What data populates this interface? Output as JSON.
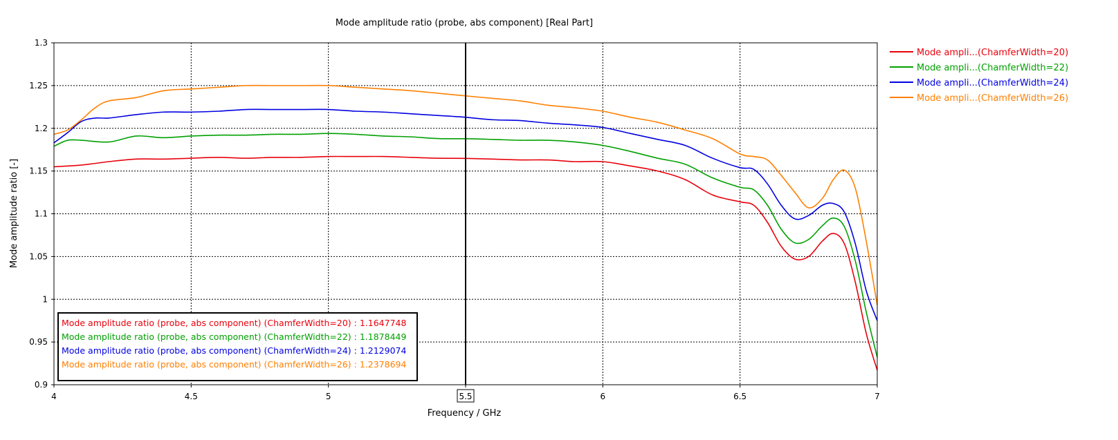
{
  "chart_data": {
    "type": "line",
    "title": "Mode amplitude ratio (probe, abs component) [Real Part]",
    "xlabel": "Frequency / GHz",
    "ylabel": "Mode amplitude ratio [-]",
    "xlim": [
      4,
      7
    ],
    "ylim": [
      0.9,
      1.3
    ],
    "xticks": [
      4,
      4.5,
      5,
      5.5,
      6,
      6.5,
      7
    ],
    "xtick_labels": [
      "4",
      "4.5",
      "5",
      "5.5",
      "6",
      "6.5",
      "7"
    ],
    "yticks": [
      0.9,
      0.95,
      1.0,
      1.05,
      1.1,
      1.15,
      1.2,
      1.25,
      1.3
    ],
    "ytick_labels": [
      "0.9",
      "0.95",
      "1",
      "1.05",
      "1.1",
      "1.15",
      "1.2",
      "1.25",
      "1.3"
    ],
    "grid": true,
    "legend_position": "right",
    "marker": {
      "x": 5.5,
      "label": "5.5"
    },
    "series": [
      {
        "name": "Mode ampli...(ChamferWidth=20)",
        "color": "#e8000b",
        "marker_label": "Mode amplitude ratio (probe, abs component) (ChamferWidth=20) : 1.1647748",
        "x": [
          4.0,
          4.1,
          4.2,
          4.3,
          4.4,
          4.5,
          4.6,
          4.7,
          4.8,
          4.9,
          5.0,
          5.1,
          5.2,
          5.3,
          5.4,
          5.5,
          5.6,
          5.7,
          5.8,
          5.9,
          6.0,
          6.1,
          6.2,
          6.3,
          6.4,
          6.5,
          6.55,
          6.6,
          6.65,
          6.7,
          6.75,
          6.8,
          6.84,
          6.88,
          6.92,
          6.96,
          7.0
        ],
        "y": [
          1.155,
          1.157,
          1.161,
          1.164,
          1.164,
          1.165,
          1.166,
          1.165,
          1.166,
          1.166,
          1.167,
          1.167,
          1.167,
          1.166,
          1.165,
          1.1648,
          1.164,
          1.163,
          1.163,
          1.161,
          1.161,
          1.156,
          1.15,
          1.14,
          1.122,
          1.114,
          1.11,
          1.09,
          1.062,
          1.047,
          1.05,
          1.068,
          1.077,
          1.065,
          1.02,
          0.96,
          0.917
        ]
      },
      {
        "name": "Mode ampli...(ChamferWidth=22)",
        "color": "#00a000",
        "marker_label": "Mode amplitude ratio (probe, abs component) (ChamferWidth=22) : 1.1878449",
        "x": [
          4.0,
          4.05,
          4.1,
          4.2,
          4.3,
          4.4,
          4.5,
          4.6,
          4.7,
          4.8,
          4.9,
          5.0,
          5.1,
          5.2,
          5.3,
          5.4,
          5.5,
          5.6,
          5.7,
          5.8,
          5.9,
          6.0,
          6.1,
          6.2,
          6.3,
          6.4,
          6.5,
          6.55,
          6.6,
          6.65,
          6.7,
          6.75,
          6.8,
          6.84,
          6.88,
          6.92,
          6.96,
          7.0
        ],
        "y": [
          1.179,
          1.186,
          1.186,
          1.184,
          1.191,
          1.189,
          1.191,
          1.192,
          1.192,
          1.193,
          1.193,
          1.194,
          1.193,
          1.191,
          1.19,
          1.188,
          1.1878,
          1.187,
          1.186,
          1.186,
          1.184,
          1.18,
          1.173,
          1.165,
          1.158,
          1.142,
          1.131,
          1.128,
          1.11,
          1.082,
          1.066,
          1.07,
          1.086,
          1.095,
          1.085,
          1.045,
          0.985,
          0.932
        ]
      },
      {
        "name": "Mode ampli...(ChamferWidth=24)",
        "color": "#0000e0",
        "marker_label": "Mode amplitude ratio (probe, abs component) (ChamferWidth=24) : 1.2129074",
        "x": [
          4.0,
          4.05,
          4.1,
          4.15,
          4.2,
          4.3,
          4.4,
          4.5,
          4.6,
          4.7,
          4.8,
          4.9,
          5.0,
          5.1,
          5.2,
          5.3,
          5.4,
          5.5,
          5.6,
          5.7,
          5.8,
          5.9,
          6.0,
          6.1,
          6.2,
          6.3,
          6.4,
          6.5,
          6.55,
          6.6,
          6.65,
          6.7,
          6.75,
          6.8,
          6.84,
          6.88,
          6.92,
          6.96,
          7.0
        ],
        "y": [
          1.183,
          1.195,
          1.208,
          1.212,
          1.212,
          1.216,
          1.219,
          1.219,
          1.22,
          1.222,
          1.222,
          1.222,
          1.222,
          1.22,
          1.219,
          1.217,
          1.215,
          1.2129,
          1.21,
          1.209,
          1.206,
          1.204,
          1.201,
          1.194,
          1.187,
          1.18,
          1.165,
          1.154,
          1.152,
          1.135,
          1.11,
          1.094,
          1.098,
          1.11,
          1.112,
          1.102,
          1.065,
          1.01,
          0.975
        ]
      },
      {
        "name": "Mode ampli...(ChamferWidth=26)",
        "color": "#ff7f00",
        "marker_label": "Mode amplitude ratio (probe, abs component) (ChamferWidth=26) : 1.2378694",
        "x": [
          4.0,
          4.05,
          4.1,
          4.15,
          4.2,
          4.3,
          4.4,
          4.5,
          4.6,
          4.7,
          4.8,
          4.9,
          5.0,
          5.1,
          5.2,
          5.3,
          5.4,
          5.5,
          5.6,
          5.7,
          5.8,
          5.9,
          6.0,
          6.1,
          6.2,
          6.3,
          6.4,
          6.5,
          6.55,
          6.6,
          6.65,
          6.7,
          6.75,
          6.8,
          6.84,
          6.88,
          6.92,
          6.96,
          7.0
        ],
        "y": [
          1.193,
          1.198,
          1.21,
          1.224,
          1.232,
          1.236,
          1.244,
          1.246,
          1.248,
          1.25,
          1.25,
          1.25,
          1.25,
          1.248,
          1.246,
          1.244,
          1.241,
          1.2379,
          1.235,
          1.232,
          1.227,
          1.224,
          1.22,
          1.213,
          1.207,
          1.198,
          1.188,
          1.17,
          1.167,
          1.163,
          1.145,
          1.125,
          1.107,
          1.118,
          1.14,
          1.151,
          1.13,
          1.068,
          0.993
        ]
      }
    ]
  }
}
